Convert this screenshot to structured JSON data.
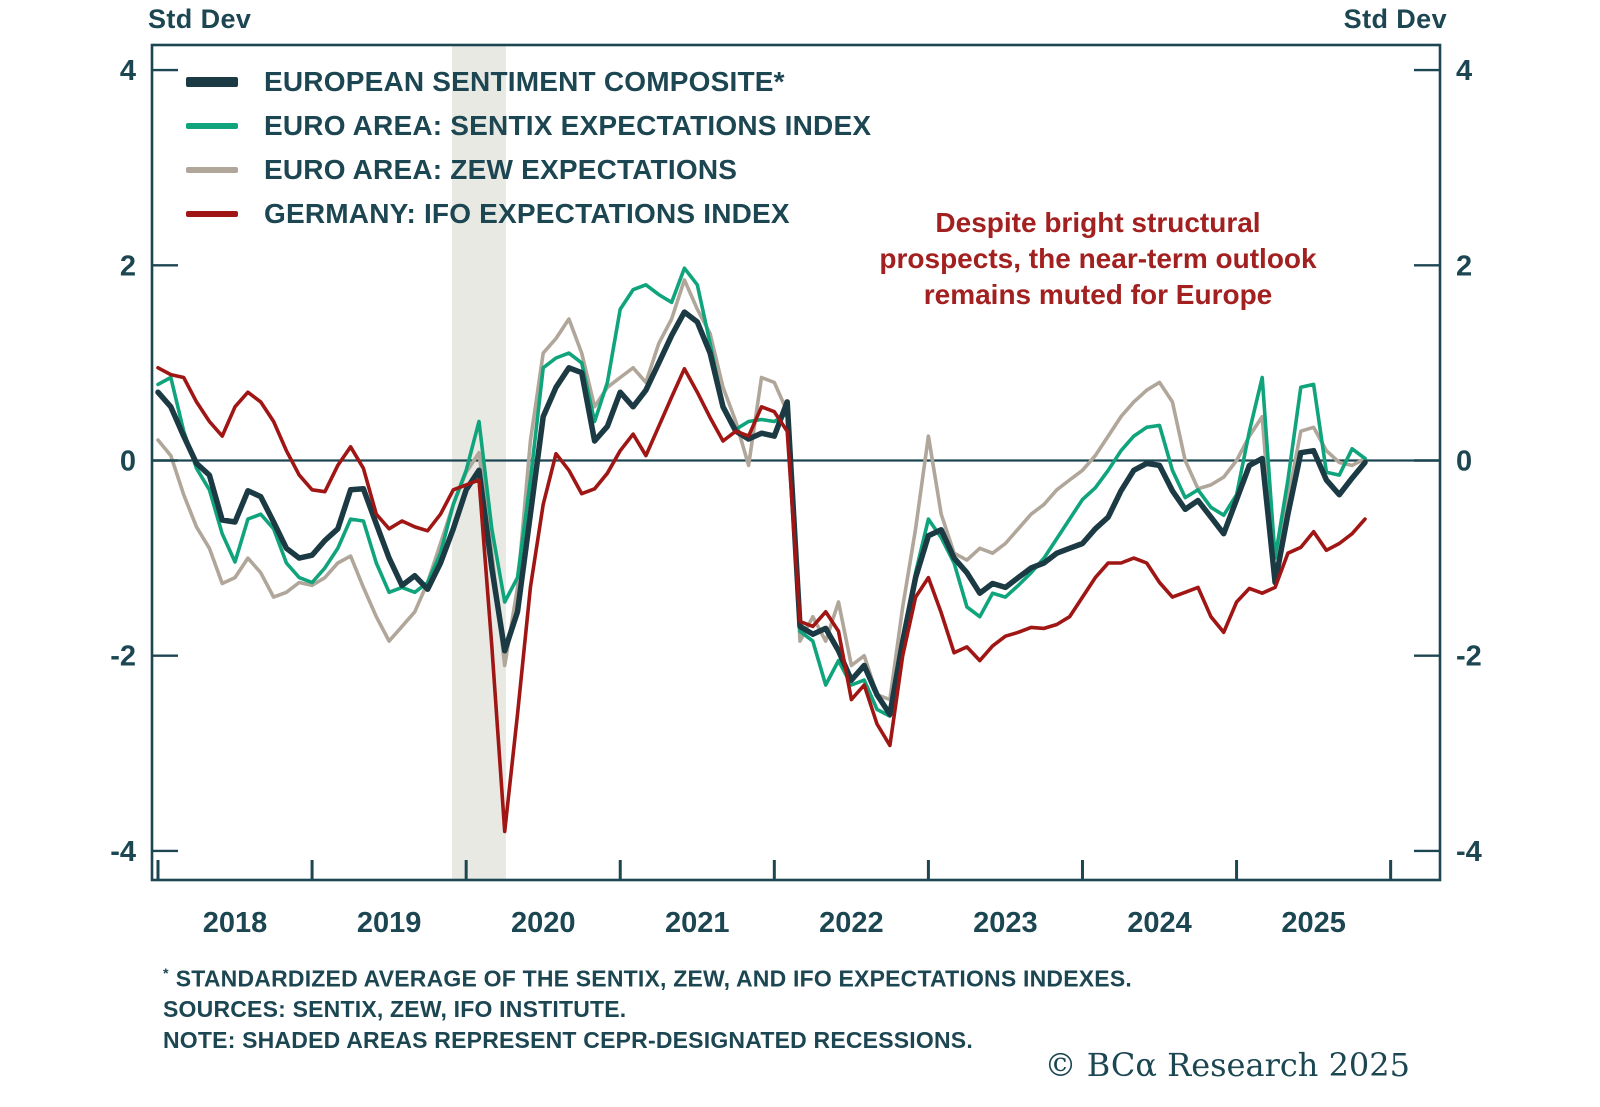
{
  "header": {
    "left_unit": "Std Dev",
    "right_unit": "Std Dev"
  },
  "legend": {
    "items": [
      {
        "label": "EUROPEAN SENTIMENT COMPOSITE*"
      },
      {
        "label": "EURO AREA: SENTIX EXPECTATIONS INDEX"
      },
      {
        "label": "EURO AREA: ZEW EXPECTATIONS"
      },
      {
        "label": "GERMANY: IFO EXPECTATIONS INDEX"
      }
    ]
  },
  "annotation": {
    "color": "#a32020",
    "lines": [
      "Despite bright structural",
      "prospects, the near-term outlook",
      "remains muted for Europe"
    ]
  },
  "footnotes": {
    "star": "*",
    "line1": "STANDARDIZED AVERAGE OF THE SENTIX, ZEW, AND IFO EXPECTATIONS INDEXES.",
    "line2": "SOURCES: SENTIX, ZEW, IFO INSTITUTE.",
    "line3": "NOTE: SHADED AREAS REPRESENT CEPR-DESIGNATED RECESSIONS."
  },
  "copyright": "© BCα Research 2025",
  "chart_data": {
    "type": "line",
    "unit": "Std Dev",
    "x_start": "2018-01",
    "frequency": "monthly",
    "ylim": [
      -4.3,
      4.3
    ],
    "yticks": [
      4,
      2,
      0,
      -2,
      -4
    ],
    "zero_line": true,
    "grid": false,
    "legend_position": "top-left-inside",
    "axis_color": "#1c4652",
    "band_color": "#e9e9e4",
    "year_labels": [
      "2018",
      "2019",
      "2020",
      "2021",
      "2022",
      "2023",
      "2024",
      "2025"
    ],
    "year_label_months": [
      6,
      18,
      30,
      42,
      54,
      66,
      78,
      90
    ],
    "year_tick_months": [
      0,
      12,
      24,
      36,
      48,
      60,
      72,
      84,
      96
    ],
    "recession_bands": [
      {
        "start_month": 22.9,
        "end_month": 27.1
      }
    ],
    "series": [
      {
        "name": "EUROPEAN SENTIMENT COMPOSITE*",
        "color": "#1b3a43",
        "width": 5.5,
        "values": [
          0.7,
          0.55,
          0.25,
          -0.03,
          -0.15,
          -0.61,
          -0.63,
          -0.31,
          -0.37,
          -0.63,
          -0.9,
          -1.0,
          -0.97,
          -0.82,
          -0.7,
          -0.3,
          -0.29,
          -0.65,
          -1.0,
          -1.28,
          -1.18,
          -1.32,
          -1.05,
          -0.7,
          -0.3,
          -0.1,
          -1.1,
          -1.95,
          -1.55,
          -0.55,
          0.45,
          0.75,
          0.95,
          0.9,
          0.2,
          0.35,
          0.7,
          0.55,
          0.72,
          1.0,
          1.28,
          1.52,
          1.42,
          1.1,
          0.55,
          0.3,
          0.22,
          0.28,
          0.25,
          0.6,
          -1.7,
          -1.78,
          -1.72,
          -1.95,
          -2.25,
          -2.1,
          -2.4,
          -2.6,
          -1.85,
          -1.2,
          -0.77,
          -0.71,
          -1.0,
          -1.15,
          -1.36,
          -1.26,
          -1.3,
          -1.2,
          -1.1,
          -1.05,
          -0.95,
          -0.9,
          -0.85,
          -0.7,
          -0.58,
          -0.31,
          -0.1,
          -0.03,
          -0.05,
          -0.31,
          -0.5,
          -0.41,
          -0.58,
          -0.75,
          -0.4,
          -0.05,
          0.02,
          -1.25,
          -0.55,
          0.08,
          0.1,
          -0.2,
          -0.35,
          -0.18,
          -0.02
        ]
      },
      {
        "name": "EURO AREA: SENTIX EXPECTATIONS INDEX",
        "color": "#10a47c",
        "width": 3.6,
        "values": [
          0.78,
          0.85,
          0.3,
          -0.08,
          -0.3,
          -0.75,
          -1.04,
          -0.6,
          -0.55,
          -0.7,
          -1.05,
          -1.2,
          -1.25,
          -1.1,
          -0.9,
          -0.6,
          -0.62,
          -1.05,
          -1.35,
          -1.3,
          -1.35,
          -1.25,
          -0.95,
          -0.45,
          -0.1,
          0.4,
          -0.7,
          -1.45,
          -1.2,
          -0.2,
          0.95,
          1.05,
          1.1,
          1.0,
          0.4,
          0.8,
          1.55,
          1.75,
          1.8,
          1.7,
          1.62,
          1.97,
          1.8,
          1.2,
          0.55,
          0.32,
          0.4,
          0.42,
          0.4,
          0.48,
          -1.75,
          -1.85,
          -2.3,
          -2.05,
          -2.3,
          -2.25,
          -2.55,
          -2.62,
          -1.85,
          -1.15,
          -0.6,
          -0.79,
          -1.05,
          -1.5,
          -1.6,
          -1.36,
          -1.4,
          -1.28,
          -1.15,
          -1.0,
          -0.8,
          -0.6,
          -0.4,
          -0.28,
          -0.1,
          0.1,
          0.25,
          0.34,
          0.36,
          -0.1,
          -0.38,
          -0.3,
          -0.48,
          -0.56,
          -0.35,
          0.3,
          0.85,
          -1.0,
          -0.2,
          0.75,
          0.78,
          -0.12,
          -0.15,
          0.12,
          0.02
        ]
      },
      {
        "name": "EURO AREA: ZEW EXPECTATIONS",
        "color": "#b0a69a",
        "width": 3.6,
        "values": [
          0.21,
          0.05,
          -0.35,
          -0.68,
          -0.9,
          -1.26,
          -1.2,
          -1.0,
          -1.15,
          -1.4,
          -1.35,
          -1.25,
          -1.28,
          -1.2,
          -1.05,
          -0.98,
          -1.3,
          -1.6,
          -1.85,
          -1.7,
          -1.55,
          -1.25,
          -0.85,
          -0.45,
          -0.12,
          0.08,
          -0.95,
          -2.1,
          -1.3,
          0.2,
          1.1,
          1.25,
          1.45,
          1.1,
          0.55,
          0.75,
          0.85,
          0.95,
          0.8,
          1.2,
          1.45,
          1.85,
          1.55,
          1.3,
          0.75,
          0.4,
          -0.05,
          0.85,
          0.8,
          0.5,
          -1.85,
          -1.6,
          -1.85,
          -1.45,
          -2.1,
          -2.0,
          -2.4,
          -2.45,
          -1.5,
          -0.7,
          0.25,
          -0.55,
          -0.95,
          -1.02,
          -0.9,
          -0.95,
          -0.85,
          -0.7,
          -0.55,
          -0.45,
          -0.3,
          -0.2,
          -0.1,
          0.05,
          0.25,
          0.45,
          0.6,
          0.72,
          0.8,
          0.6,
          0.0,
          -0.29,
          -0.25,
          -0.17,
          0.0,
          0.25,
          0.45,
          -1.25,
          -0.4,
          0.3,
          0.34,
          0.1,
          -0.02,
          -0.05,
          0.02
        ]
      },
      {
        "name": "GERMANY: IFO EXPECTATIONS INDEX",
        "color": "#a01614",
        "width": 3.6,
        "values": [
          0.95,
          0.88,
          0.85,
          0.6,
          0.4,
          0.25,
          0.55,
          0.7,
          0.6,
          0.4,
          0.1,
          -0.15,
          -0.3,
          -0.32,
          -0.05,
          0.14,
          -0.08,
          -0.55,
          -0.7,
          -0.62,
          -0.68,
          -0.72,
          -0.55,
          -0.3,
          -0.25,
          -0.2,
          -1.9,
          -3.8,
          -2.6,
          -1.3,
          -0.45,
          0.07,
          -0.1,
          -0.34,
          -0.29,
          -0.13,
          0.1,
          0.27,
          0.05,
          0.35,
          0.65,
          0.94,
          0.7,
          0.44,
          0.2,
          0.3,
          0.25,
          0.55,
          0.5,
          0.3,
          -1.65,
          -1.7,
          -1.55,
          -1.75,
          -2.45,
          -2.3,
          -2.7,
          -2.92,
          -2.0,
          -1.4,
          -1.2,
          -1.56,
          -1.97,
          -1.91,
          -2.05,
          -1.9,
          -1.8,
          -1.76,
          -1.71,
          -1.72,
          -1.68,
          -1.6,
          -1.4,
          -1.2,
          -1.05,
          -1.05,
          -1.0,
          -1.05,
          -1.25,
          -1.4,
          -1.35,
          -1.3,
          -1.6,
          -1.76,
          -1.45,
          -1.31,
          -1.36,
          -1.3,
          -0.95,
          -0.89,
          -0.73,
          -0.92,
          -0.85,
          -0.75,
          -0.6
        ]
      }
    ],
    "draw_order": [
      2,
      1,
      0,
      3
    ]
  }
}
